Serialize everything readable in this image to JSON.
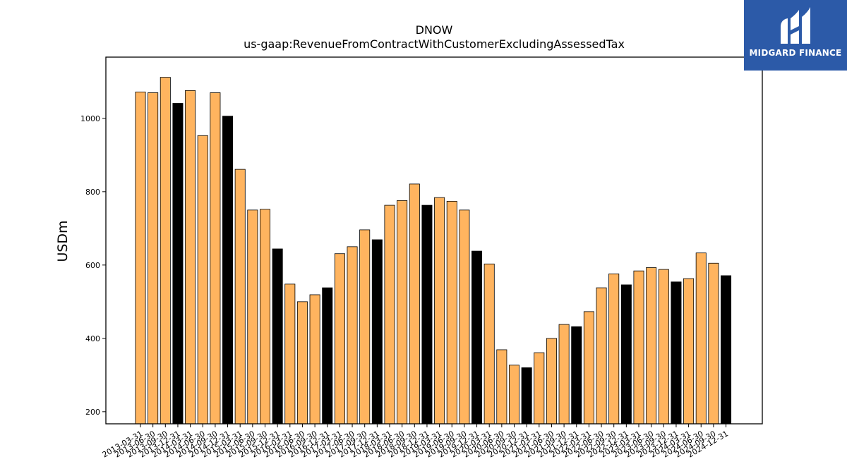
{
  "chart_data": {
    "type": "bar",
    "title": "DNOW",
    "subtitle": "us-gaap:RevenueFromContractWithCustomerExcludingAssessedTax",
    "xlabel": "",
    "ylabel": "USDm",
    "ylim": [
      167,
      1167
    ],
    "yticks": [
      200,
      400,
      600,
      800,
      1000
    ],
    "grid": false,
    "colors": {
      "quarter": "#ffb45f",
      "year_end": "#000000",
      "edge": "#000000"
    },
    "categories": [
      "2013-03-31",
      "2013-06-30",
      "2013-09-30",
      "2013-12-31",
      "2014-03-31",
      "2014-06-30",
      "2014-09-30",
      "2014-12-31",
      "2015-03-31",
      "2015-06-30",
      "2015-09-30",
      "2015-12-31",
      "2016-03-31",
      "2016-06-30",
      "2016-09-30",
      "2016-12-31",
      "2017-03-31",
      "2017-06-30",
      "2017-09-30",
      "2017-12-31",
      "2018-03-31",
      "2018-06-30",
      "2018-09-30",
      "2018-12-31",
      "2019-03-31",
      "2019-06-30",
      "2019-09-30",
      "2019-12-31",
      "2020-03-31",
      "2020-06-30",
      "2020-09-30",
      "2020-12-31",
      "2021-03-31",
      "2021-06-30",
      "2021-09-30",
      "2021-12-31",
      "2022-03-31",
      "2022-06-30",
      "2022-09-30",
      "2022-12-31",
      "2023-03-31",
      "2023-06-30",
      "2023-09-30",
      "2023-12-31",
      "2024-03-31",
      "2024-06-30",
      "2024-09-30",
      "2024-12-31"
    ],
    "values": [
      1072,
      1070,
      1112,
      1041,
      1076,
      953,
      1070,
      1006,
      861,
      750,
      752,
      644,
      548,
      500,
      519,
      538,
      631,
      650,
      696,
      669,
      763,
      776,
      821,
      763,
      784,
      774,
      750,
      638,
      603,
      369,
      327,
      320,
      361,
      400,
      438,
      432,
      473,
      538,
      576,
      546,
      584,
      593,
      588,
      554,
      563,
      633,
      605,
      571
    ]
  },
  "logo": {
    "name": "midgard-logo-icon",
    "text": "MIDGARD FINANCE"
  }
}
